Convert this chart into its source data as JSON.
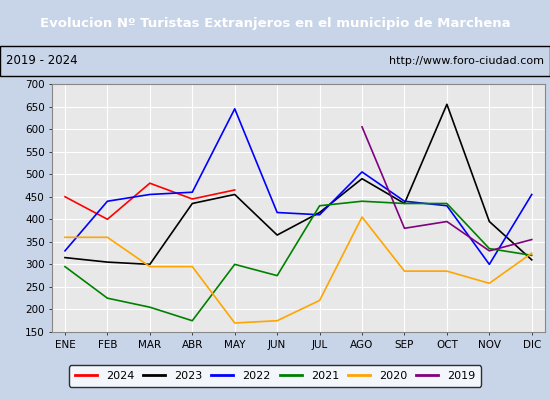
{
  "title": "Evolucion Nº Turistas Extranjeros en el municipio de Marchena",
  "subtitle_left": "2019 - 2024",
  "subtitle_right": "http://www.foro-ciudad.com",
  "title_bg": "#4f86c6",
  "title_color": "white",
  "plot_bg": "#e8e8e8",
  "fig_bg": "#c8d4e8",
  "months": [
    "ENE",
    "FEB",
    "MAR",
    "ABR",
    "MAY",
    "JUN",
    "JUL",
    "AGO",
    "SEP",
    "OCT",
    "NOV",
    "DIC"
  ],
  "ylim": [
    150,
    700
  ],
  "yticks": [
    150,
    200,
    250,
    300,
    350,
    400,
    450,
    500,
    550,
    600,
    650,
    700
  ],
  "series": {
    "2024": {
      "color": "red",
      "data": [
        450,
        400,
        480,
        445,
        465,
        null,
        null,
        null,
        null,
        null,
        null,
        null
      ]
    },
    "2023": {
      "color": "black",
      "data": [
        315,
        305,
        300,
        435,
        455,
        365,
        415,
        490,
        435,
        655,
        395,
        310
      ]
    },
    "2022": {
      "color": "blue",
      "data": [
        330,
        440,
        455,
        460,
        645,
        415,
        410,
        505,
        440,
        430,
        300,
        455
      ]
    },
    "2021": {
      "color": "green",
      "data": [
        295,
        225,
        205,
        175,
        300,
        275,
        430,
        440,
        435,
        435,
        335,
        320
      ]
    },
    "2020": {
      "color": "orange",
      "data": [
        360,
        360,
        295,
        295,
        170,
        175,
        220,
        405,
        285,
        285,
        258,
        325
      ]
    },
    "2019": {
      "color": "purple",
      "data": [
        null,
        null,
        null,
        null,
        null,
        null,
        null,
        605,
        380,
        395,
        330,
        355
      ]
    }
  }
}
